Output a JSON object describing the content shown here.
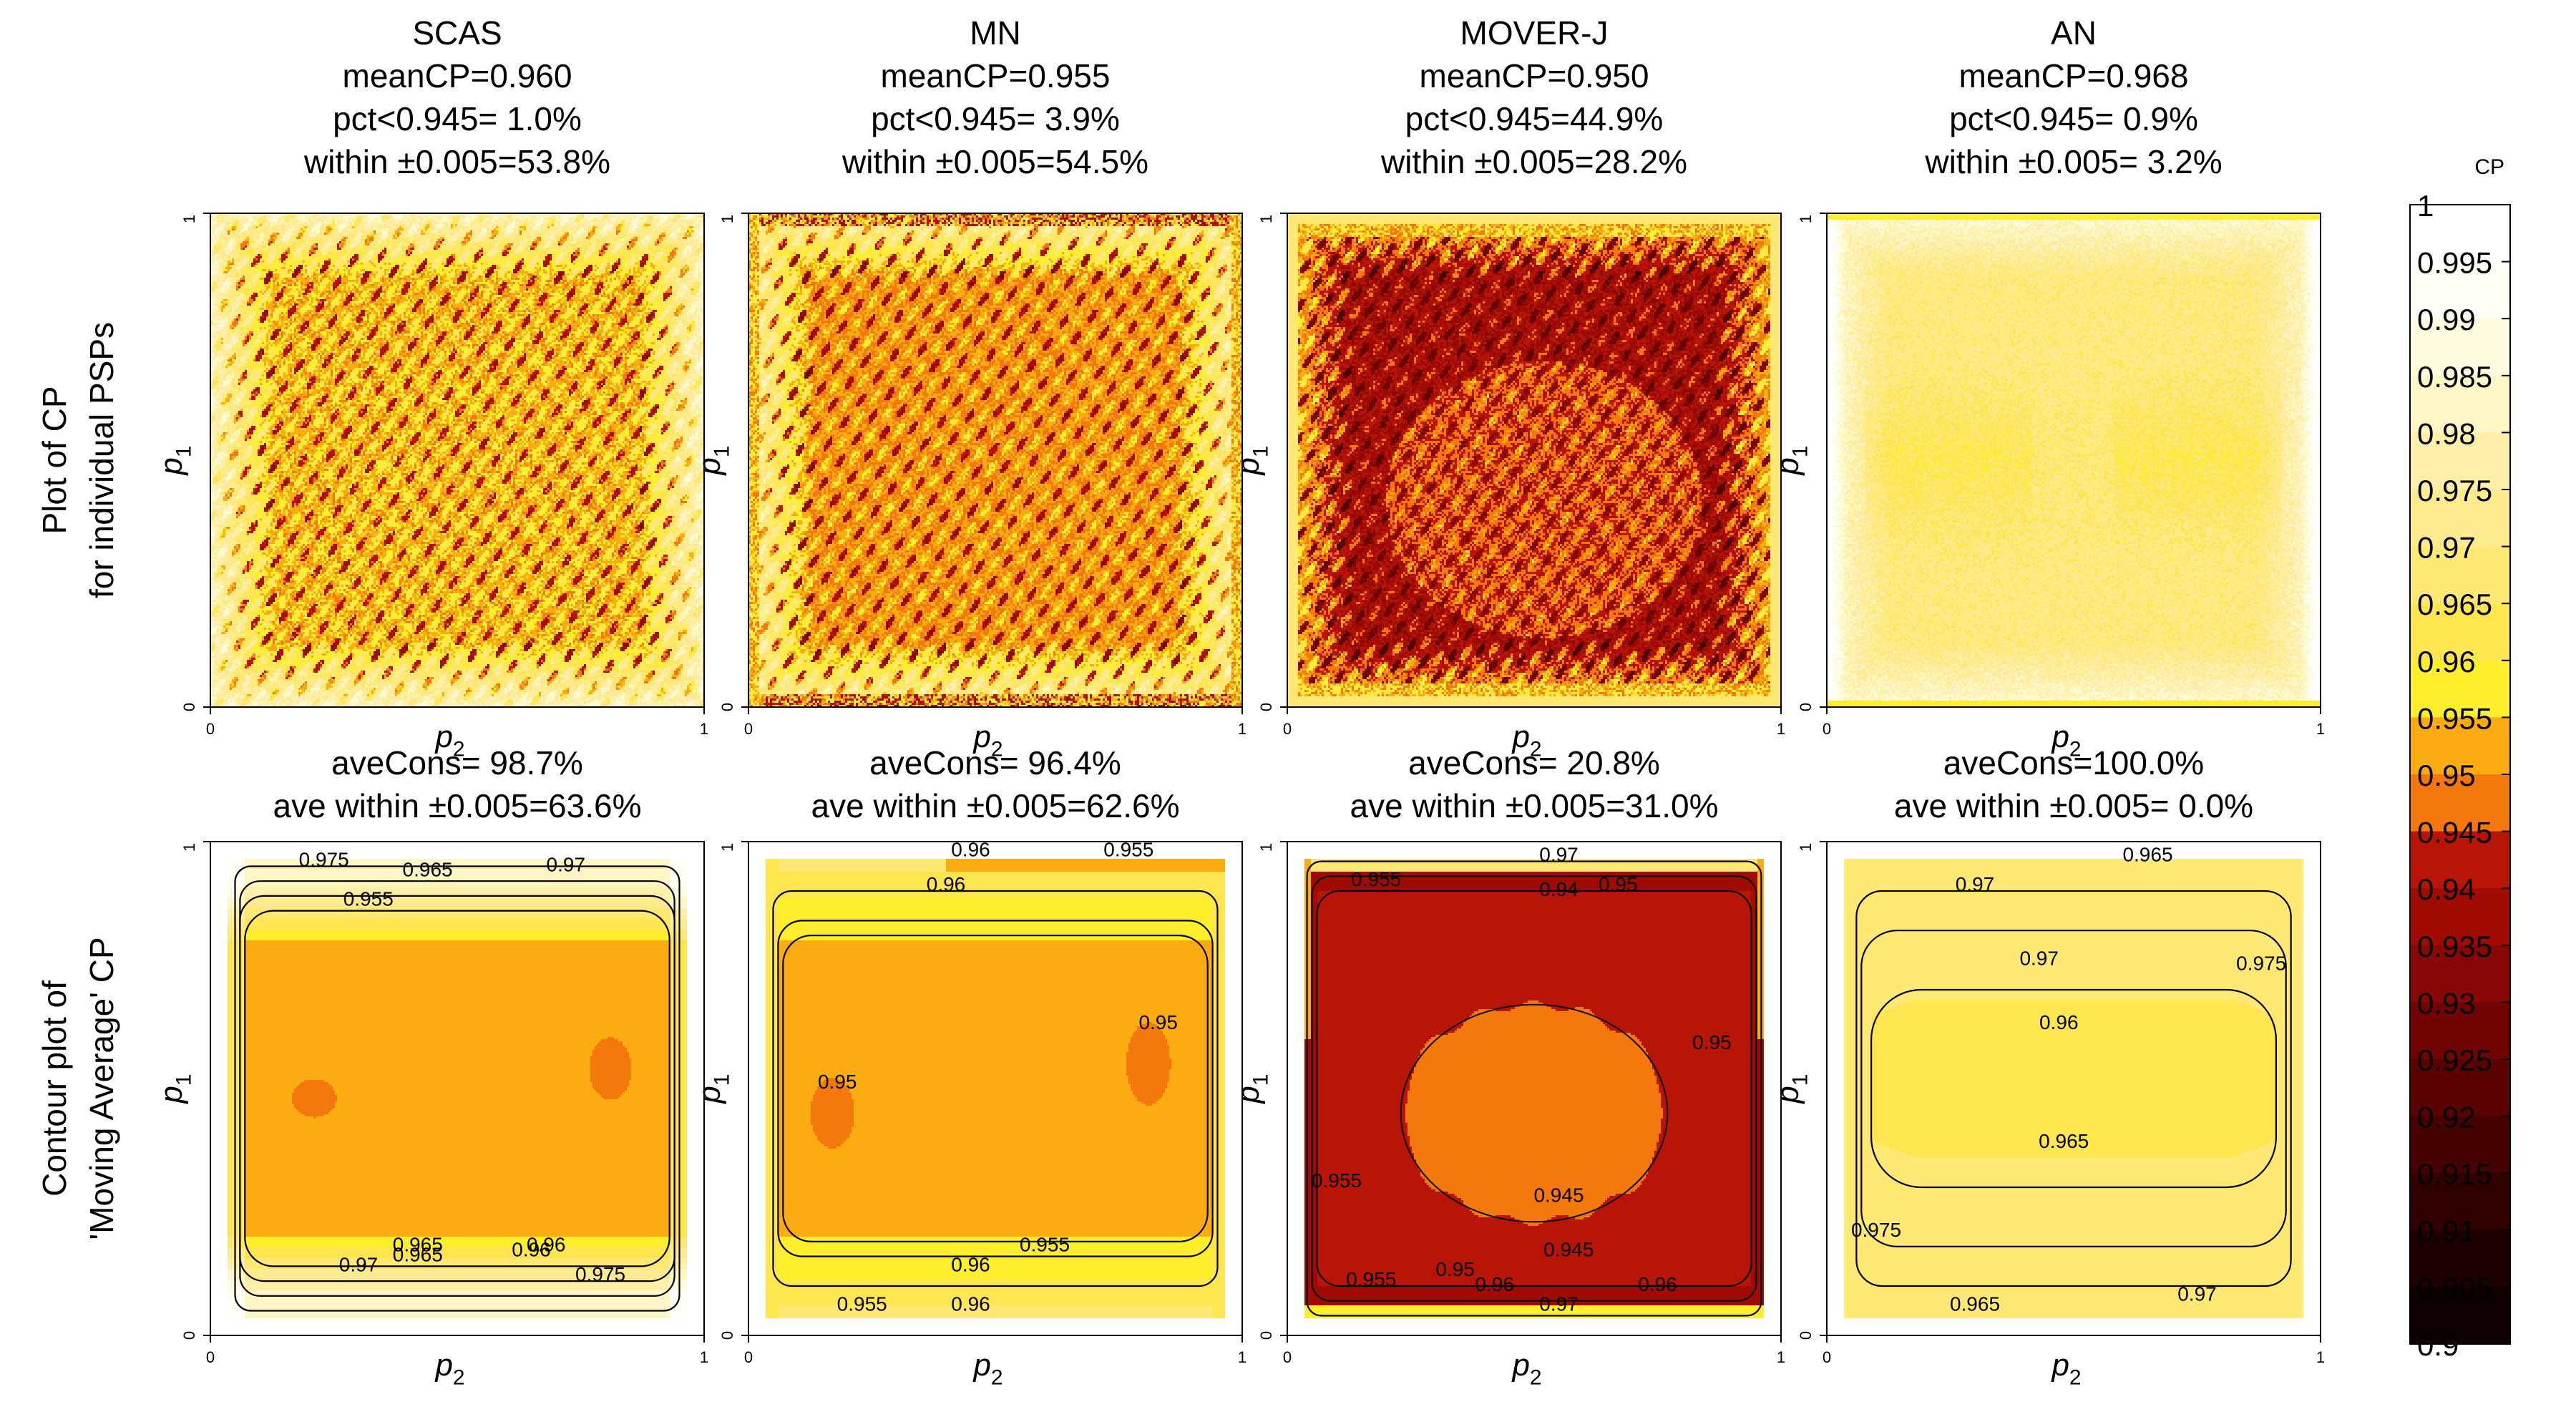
{
  "chart_data": {
    "type": "heatmap",
    "methods": [
      "SCAS",
      "MN",
      "MOVER-J",
      "AN"
    ],
    "top_row": {
      "row_label": [
        "Plot of CP",
        "for individual PSPs"
      ],
      "panels": [
        {
          "method": "SCAS",
          "stats": [
            "meanCP=0.960",
            "pct<0.945= 1.0%",
            "within ±0.005=53.8%"
          ],
          "interior_cp": 0.953,
          "edge_cp": 0.98
        },
        {
          "method": "MN",
          "stats": [
            "meanCP=0.955",
            "pct<0.945= 3.9%",
            "within ±0.005=54.5%"
          ],
          "interior_cp": 0.95,
          "edge_cp": 0.975
        },
        {
          "method": "MOVER-J",
          "stats": [
            "meanCP=0.950",
            "pct<0.945=44.9%",
            "within ±0.005=28.2%"
          ],
          "interior_cp": 0.938,
          "edge_cp": 0.955
        },
        {
          "method": "AN",
          "stats": [
            "meanCP=0.968",
            "pct<0.945= 0.9%",
            "within ±0.005= 3.2%"
          ],
          "interior_cp": 0.969,
          "edge_cp": 0.985
        }
      ]
    },
    "bottom_row": {
      "row_label": [
        "Contour plot of",
        "'Moving Average' CP"
      ],
      "panels": [
        {
          "method": "SCAS",
          "stats": [
            "aveCons= 98.7%",
            "ave within ±0.005=63.6%"
          ],
          "contour_labels": [
            "0.975",
            "0.965",
            "0.97",
            "0.955",
            "0.965",
            "0.96",
            "0.97",
            "0.965",
            "0.96",
            "0.975"
          ]
        },
        {
          "method": "MN",
          "stats": [
            "aveCons= 96.4%",
            "ave within ±0.005=62.6%"
          ],
          "contour_labels": [
            "0.96",
            "0.955",
            "0.96",
            "0.95",
            "0.95",
            "0.955",
            "0.96",
            "0.955",
            "0.96"
          ]
        },
        {
          "method": "MOVER-J",
          "stats": [
            "aveCons= 20.8%",
            "ave within ±0.005=31.0%"
          ],
          "contour_labels": [
            "0.97",
            "0.955",
            "0.95",
            "0.94",
            "0.95",
            "0.955",
            "0.945",
            "0.945",
            "0.955",
            "0.95",
            "0.96",
            "0.96",
            "0.97"
          ]
        },
        {
          "method": "AN",
          "stats": [
            "aveCons=100.0%",
            "ave within ±0.005= 0.0%"
          ],
          "contour_labels": [
            "0.965",
            "0.97",
            "0.975",
            "0.97",
            "0.96",
            "0.965",
            "0.975",
            "0.965",
            "0.97"
          ]
        }
      ]
    },
    "x_axis": {
      "label": "p",
      "subscript": "2",
      "ticks": [
        "0",
        "1"
      ],
      "range": [
        0,
        1
      ]
    },
    "y_axis": {
      "label": "p",
      "subscript": "1",
      "ticks": [
        "0",
        "1"
      ],
      "range": [
        0,
        1
      ]
    },
    "colorbar": {
      "title": "CP",
      "range": [
        0.9,
        1.0
      ],
      "ticks": [
        "1",
        "0.995",
        "0.99",
        "0.985",
        "0.98",
        "0.975",
        "0.97",
        "0.965",
        "0.96",
        "0.955",
        "0.95",
        "0.945",
        "0.94",
        "0.935",
        "0.93",
        "0.925",
        "0.92",
        "0.915",
        "0.91",
        "0.905",
        "0.9"
      ],
      "bands": [
        {
          "from": 0.995,
          "to": 1.0,
          "color": "#ffffff"
        },
        {
          "from": 0.99,
          "to": 0.995,
          "color": "#fffef4"
        },
        {
          "from": 0.985,
          "to": 0.99,
          "color": "#fffbde"
        },
        {
          "from": 0.98,
          "to": 0.985,
          "color": "#fff6c6"
        },
        {
          "from": 0.975,
          "to": 0.98,
          "color": "#ffefa8"
        },
        {
          "from": 0.97,
          "to": 0.975,
          "color": "#ffeb8f"
        },
        {
          "from": 0.965,
          "to": 0.97,
          "color": "#ffe873"
        },
        {
          "from": 0.96,
          "to": 0.965,
          "color": "#ffe550"
        },
        {
          "from": 0.955,
          "to": 0.96,
          "color": "#ffee2c"
        },
        {
          "from": 0.95,
          "to": 0.955,
          "color": "#fcac10"
        },
        {
          "from": 0.945,
          "to": 0.95,
          "color": "#f4780c"
        },
        {
          "from": 0.94,
          "to": 0.945,
          "color": "#b81508"
        },
        {
          "from": 0.935,
          "to": 0.94,
          "color": "#a00c04"
        },
        {
          "from": 0.93,
          "to": 0.935,
          "color": "#870804"
        },
        {
          "from": 0.925,
          "to": 0.93,
          "color": "#700402"
        },
        {
          "from": 0.92,
          "to": 0.925,
          "color": "#5a0302"
        },
        {
          "from": 0.915,
          "to": 0.92,
          "color": "#450201"
        },
        {
          "from": 0.91,
          "to": 0.915,
          "color": "#310100"
        },
        {
          "from": 0.905,
          "to": 0.91,
          "color": "#1f0000"
        },
        {
          "from": 0.9,
          "to": 0.905,
          "color": "#0e0000"
        }
      ]
    }
  }
}
